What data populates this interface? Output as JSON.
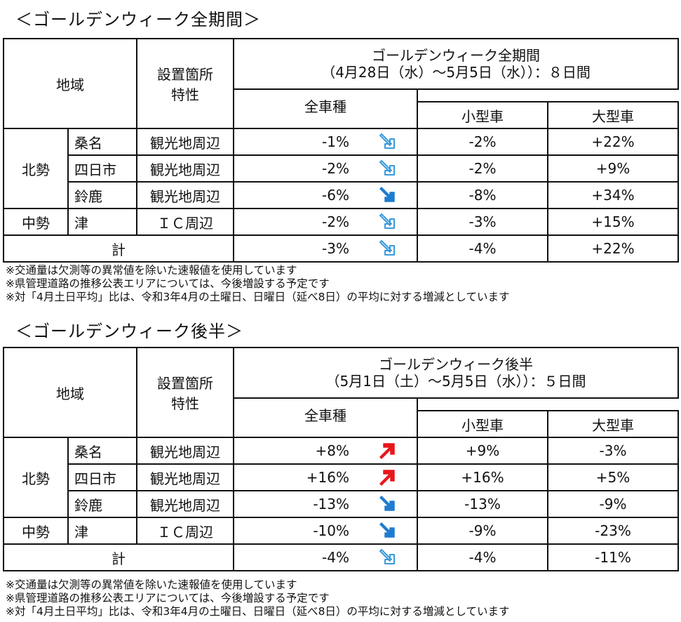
{
  "sections": [
    {
      "title": "＜ゴールデンウィーク全期間＞",
      "header": {
        "region": "地域",
        "location_line1": "設置箇所",
        "location_line2": "特性",
        "period_line1": "ゴールデンウィーク全期間",
        "period_line2": "（4月28日（水）～5月5日（水））：８日間",
        "all_types": "全車種",
        "small": "小型車",
        "large": "大型車"
      },
      "groups": [
        {
          "region": "北勢",
          "rows": [
            {
              "city": "桑名",
              "type": "観光地周辺",
              "all": "-1%",
              "arrow": "down-right-outline",
              "small": "-2%",
              "large": "+22%"
            },
            {
              "city": "四日市",
              "type": "観光地周辺",
              "all": "-2%",
              "arrow": "down-right-outline",
              "small": "-2%",
              "large": "+9%"
            },
            {
              "city": "鈴鹿",
              "type": "観光地周辺",
              "all": "-6%",
              "arrow": "down-right-blue",
              "small": "-8%",
              "large": "+34%"
            }
          ]
        },
        {
          "region": "中勢",
          "rows": [
            {
              "city": "津",
              "type": "ＩＣ周辺",
              "all": "-2%",
              "arrow": "down-right-outline",
              "small": "-3%",
              "large": "+15%"
            }
          ]
        }
      ],
      "total": {
        "label": "計",
        "all": "-3%",
        "arrow": "down-right-outline",
        "small": "-4%",
        "large": "+22%"
      },
      "notes": [
        "※交通量は欠測等の異常値を除いた速報値を使用しています",
        "※県管理道路の推移公表エリアについては、今後増設する予定です",
        "※対「4月土日平均」比は、令和3年4月の土曜日、日曜日（延べ8日）の平均に対する増減としています"
      ]
    },
    {
      "title": "＜ゴールデンウィーク後半＞",
      "header": {
        "region": "地域",
        "location_line1": "設置箇所",
        "location_line2": "特性",
        "period_line1": "ゴールデンウィーク後半",
        "period_line2": "（5月1日（土）～5月5日（水））：５日間",
        "all_types": "全車種",
        "small": "小型車",
        "large": "大型車"
      },
      "groups": [
        {
          "region": "北勢",
          "rows": [
            {
              "city": "桑名",
              "type": "観光地周辺",
              "all": "+8%",
              "arrow": "up-right-red",
              "small": "+9%",
              "large": "-3%"
            },
            {
              "city": "四日市",
              "type": "観光地周辺",
              "all": "+16%",
              "arrow": "up-right-red",
              "small": "+16%",
              "large": "+5%"
            },
            {
              "city": "鈴鹿",
              "type": "観光地周辺",
              "all": "-13%",
              "arrow": "down-right-blue",
              "small": "-13%",
              "large": "-9%"
            }
          ]
        },
        {
          "region": "中勢",
          "rows": [
            {
              "city": "津",
              "type": "ＩＣ周辺",
              "all": "-10%",
              "arrow": "down-right-blue",
              "small": "-9%",
              "large": "-23%"
            }
          ]
        }
      ],
      "total": {
        "label": "計",
        "all": "-4%",
        "arrow": "down-right-outline",
        "small": "-4%",
        "large": "-11%"
      },
      "notes": [
        "※交通量は欠測等の異常値を除いた速報値を使用しています",
        "※県管理道路の推移公表エリアについては、今後増設する予定です",
        "※対「4月土日平均」比は、令和3年4月の土曜日、日曜日（延べ8日）の平均に対する増減としています"
      ]
    }
  ],
  "colors": {
    "arrow_red": "#e8161b",
    "arrow_blue": "#1f7ccf",
    "arrow_outline": "#3a9ad9",
    "border": "#111111"
  }
}
